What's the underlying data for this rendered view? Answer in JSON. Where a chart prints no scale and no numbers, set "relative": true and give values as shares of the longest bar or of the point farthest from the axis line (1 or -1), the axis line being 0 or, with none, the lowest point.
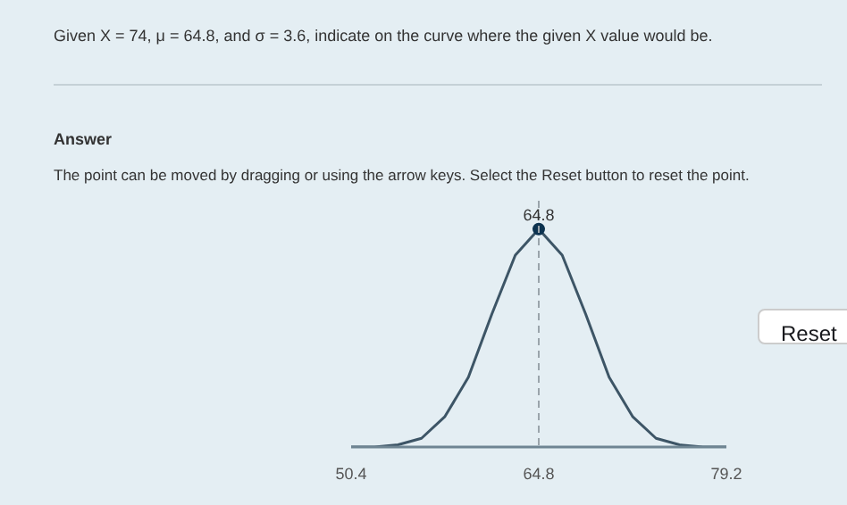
{
  "chart_data": {
    "type": "line",
    "title": "Given X = 74, μ = 64.8, and σ = 3.6, indicate on the curve where the given X value would be.",
    "annotations": [
      "Answer",
      "The point can be moved by dragging or using the arrow keys. Select the Reset button to reset the point.",
      "Reset",
      {
        "text": "64.8",
        "x": 64.8,
        "y": 1
      }
    ],
    "relative": true,
    "xlim": [
      50.4,
      79.2
    ],
    "xticks": [
      50.4,
      64.8,
      79.2
    ],
    "grid": false,
    "ref_lines": [
      {
        "axis": "x",
        "value": 64.8,
        "line_style": "dashed",
        "color": "#9aa4ab"
      }
    ],
    "series": [
      {
        "color": "#3d5566",
        "x": [
          50.4,
          52.2,
          54.0,
          55.8,
          57.6,
          59.4,
          61.2,
          63.0,
          64.8,
          66.6,
          68.4,
          70.2,
          72.0,
          73.8,
          75.6,
          77.4,
          79.2
        ],
        "values": [
          0,
          0,
          0.01,
          0.04,
          0.14,
          0.32,
          0.61,
          0.88,
          1,
          0.88,
          0.61,
          0.32,
          0.14,
          0.04,
          0.01,
          0,
          0
        ]
      },
      {
        "type": "scatter",
        "marker": "circle",
        "color": "#0d3350",
        "x": [
          64.8
        ],
        "values": [
          1
        ]
      }
    ]
  }
}
